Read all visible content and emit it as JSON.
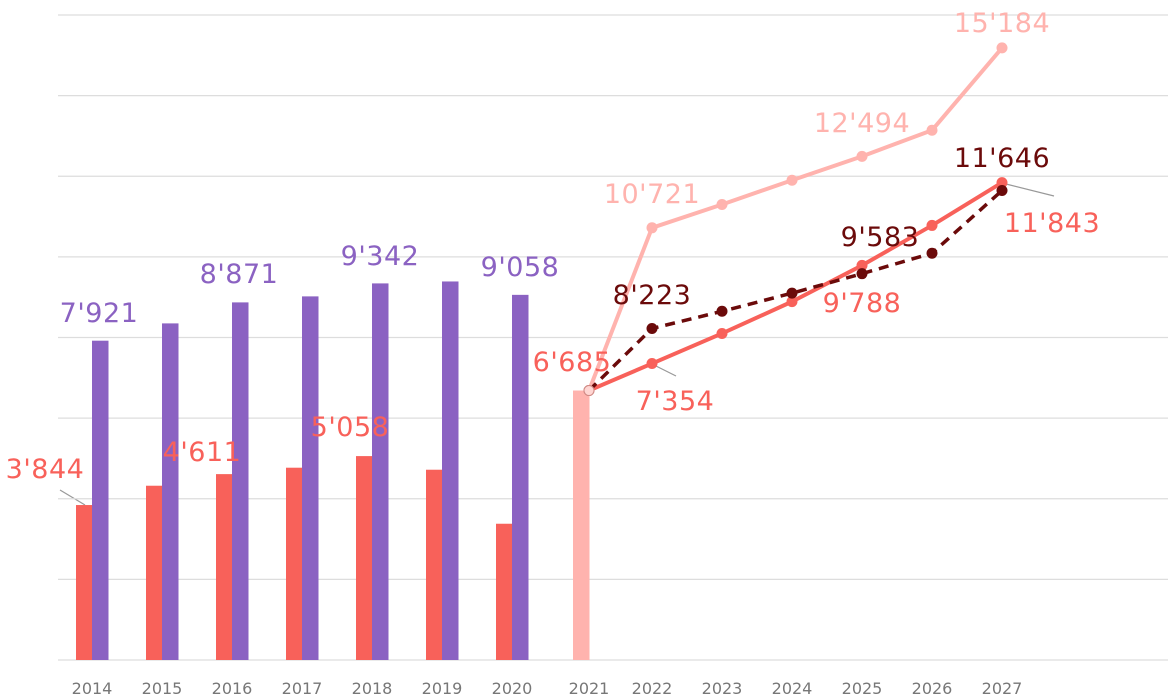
{
  "chart_data": {
    "type": "bar",
    "categories": [
      "2014",
      "2015",
      "2016",
      "2017",
      "2018",
      "2019",
      "2020",
      "2021",
      "2022",
      "2023",
      "2024",
      "2025",
      "2026",
      "2027"
    ],
    "ylim": [
      0,
      16000
    ],
    "yticks": [
      0,
      2000,
      4000,
      6000,
      8000,
      10000,
      12000,
      14000,
      16000
    ],
    "grid": true,
    "series": [
      {
        "type": "bar",
        "color": "#f8615a",
        "values": [
          3844,
          4323,
          4611,
          4770,
          5058,
          4720,
          3380,
          null,
          null,
          null,
          null,
          null,
          null,
          null
        ],
        "value_labels": [
          "3'844",
          null,
          "4'611",
          null,
          "5'058",
          null,
          null,
          null,
          null,
          null,
          null,
          null,
          null,
          null
        ]
      },
      {
        "type": "bar",
        "color": "#8b62c2",
        "values": [
          7921,
          8350,
          8871,
          9020,
          9342,
          9390,
          9058,
          null,
          null,
          null,
          null,
          null,
          null,
          null
        ],
        "value_labels": [
          "7'921",
          null,
          "8'871",
          null,
          "9'342",
          null,
          "9'058",
          null,
          null,
          null,
          null,
          null,
          null,
          null
        ]
      },
      {
        "type": "bar",
        "color": "#ffb3ae",
        "values": [
          null,
          null,
          null,
          null,
          null,
          null,
          null,
          6685,
          null,
          null,
          null,
          null,
          null,
          null
        ],
        "value_labels": [
          null,
          null,
          null,
          null,
          null,
          null,
          null,
          "6'685",
          null,
          null,
          null,
          null,
          null,
          null
        ]
      },
      {
        "type": "line",
        "color": "#ffb3ae",
        "values": [
          null,
          null,
          null,
          null,
          null,
          null,
          null,
          6685,
          10721,
          11300,
          11900,
          12494,
          13140,
          15184
        ],
        "value_labels": [
          null,
          null,
          null,
          null,
          null,
          null,
          null,
          null,
          "10'721",
          null,
          null,
          "12'494",
          null,
          "15'184"
        ]
      },
      {
        "type": "line",
        "color": "#f8615a",
        "values": [
          null,
          null,
          null,
          null,
          null,
          null,
          null,
          6685,
          7354,
          8100,
          8890,
          9788,
          10780,
          11843
        ],
        "value_labels": [
          null,
          null,
          null,
          null,
          null,
          null,
          null,
          null,
          "7'354",
          null,
          null,
          "9'788",
          null,
          "11'843"
        ]
      },
      {
        "type": "line",
        "color": "#6b0a0a",
        "dashed": true,
        "values": [
          null,
          null,
          null,
          null,
          null,
          null,
          null,
          6685,
          8223,
          8650,
          9100,
          9583,
          10090,
          11646
        ],
        "value_labels": [
          null,
          null,
          null,
          null,
          null,
          null,
          null,
          null,
          "8'223",
          null,
          null,
          "9'583",
          null,
          "11'646"
        ]
      }
    ]
  }
}
